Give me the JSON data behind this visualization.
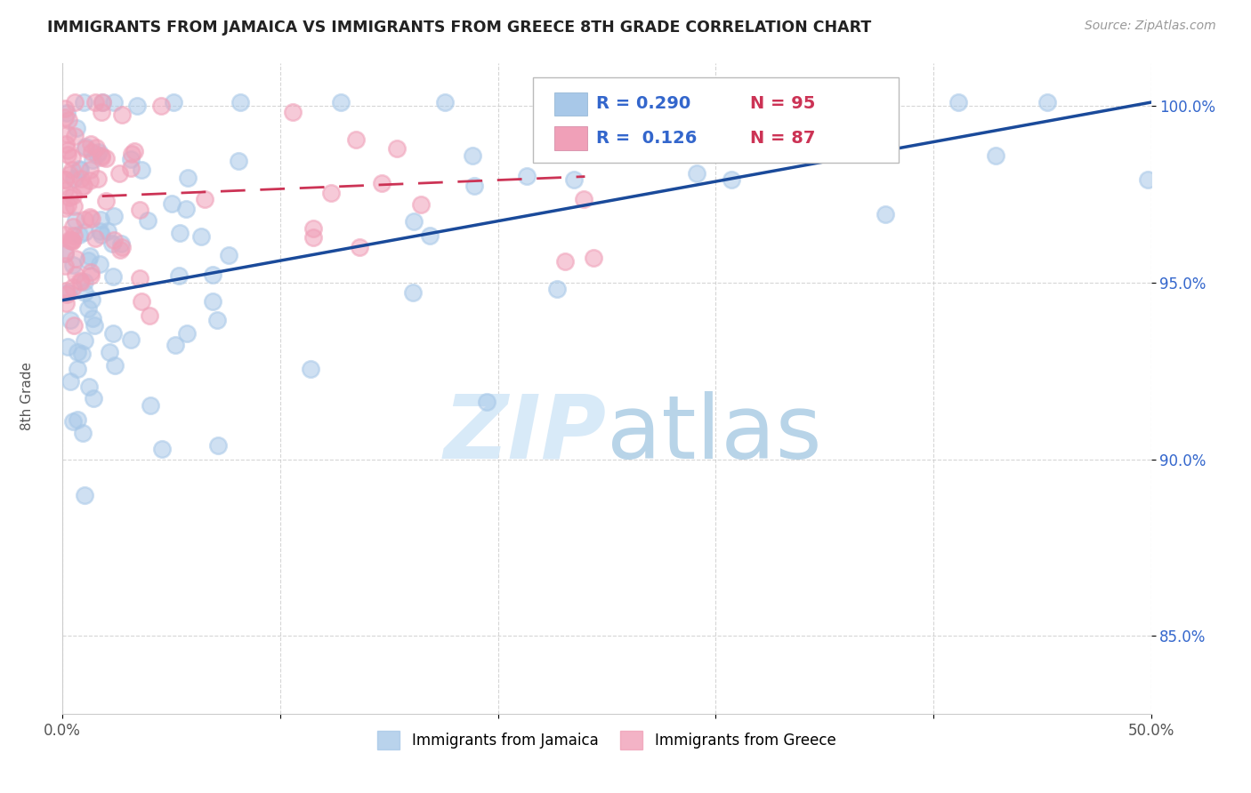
{
  "title": "IMMIGRANTS FROM JAMAICA VS IMMIGRANTS FROM GREECE 8TH GRADE CORRELATION CHART",
  "source": "Source: ZipAtlas.com",
  "ylabel": "8th Grade",
  "xlim": [
    0.0,
    0.5
  ],
  "ylim": [
    0.828,
    1.012
  ],
  "legend_labels": [
    "Immigrants from Jamaica",
    "Immigrants from Greece"
  ],
  "color_jamaica": "#a8c8e8",
  "color_greece": "#f0a0b8",
  "trendline_jamaica_color": "#1a4a9a",
  "trendline_greece_color": "#cc3355",
  "background_color": "#ffffff",
  "grid_color": "#cccccc",
  "watermark_color": "#d8eaf8",
  "jamaica_trendline_x0": 0.0,
  "jamaica_trendline_y0": 0.945,
  "jamaica_trendline_x1": 0.5,
  "jamaica_trendline_y1": 1.001,
  "greece_trendline_x0": 0.0,
  "greece_trendline_y0": 0.974,
  "greece_trendline_x1": 0.24,
  "greece_trendline_y1": 0.98
}
